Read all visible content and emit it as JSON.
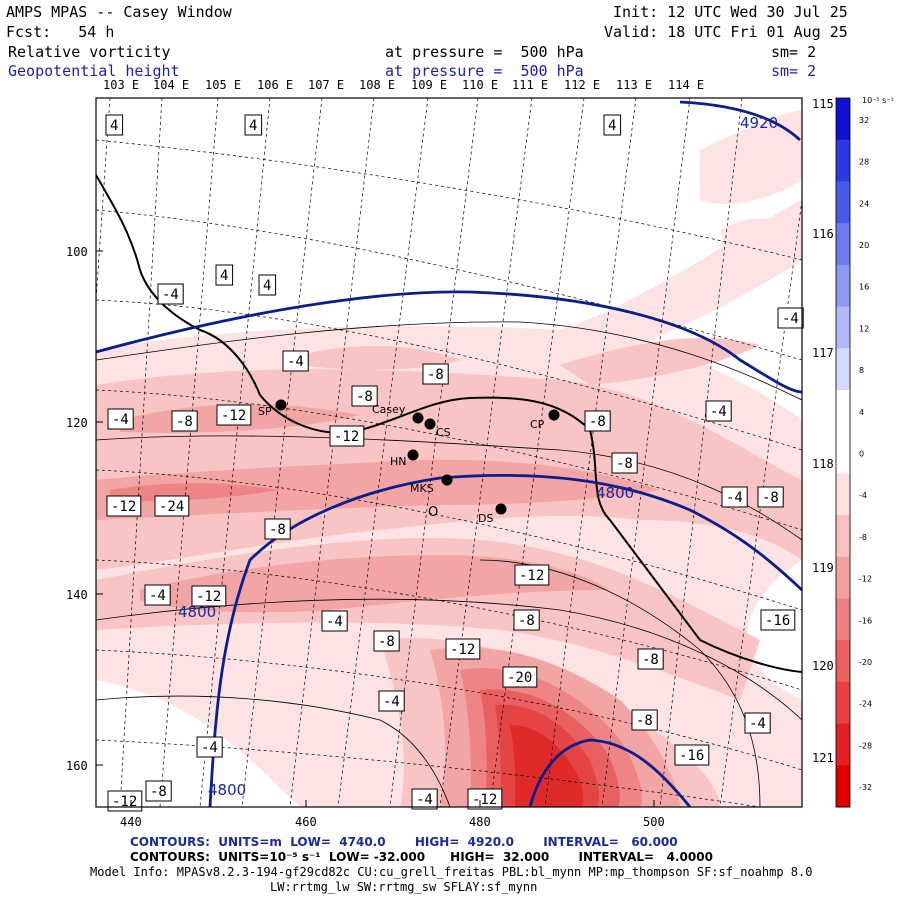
{
  "header": {
    "title": "AMPS MPAS -- Casey Window",
    "fcst": "Fcst:   54 h",
    "init": "Init: 12 UTC Wed 30 Jul 25",
    "valid": "Valid: 18 UTC Fri 01 Aug 25",
    "field1_name": "Relative vorticity",
    "field1_level": "at pressure =  500 hPa",
    "field1_sm": "sm= 2",
    "field2_name": "Geopotential height",
    "field2_level": "at pressure =  500 hPa",
    "field2_sm": "sm= 2"
  },
  "map": {
    "lon_labels": [
      "103 E",
      "104 E",
      "105 E",
      "106 E",
      "107 E",
      "108 E",
      "109 E",
      "110 E",
      "111 E",
      "112 E",
      "113 E",
      "114 E"
    ],
    "lat_labels_right": [
      "115 E",
      "116 E",
      "117 E",
      "118 E",
      "119 E",
      "120 E",
      "121 E"
    ],
    "x_ticks": [
      "440",
      "460",
      "480",
      "500"
    ],
    "y_ticks": [
      "100",
      "120",
      "140",
      "160"
    ],
    "stations": [
      {
        "id": "SP",
        "label": "SP"
      },
      {
        "id": "Casey",
        "label": "Casey"
      },
      {
        "id": "CS",
        "label": "CS"
      },
      {
        "id": "CP",
        "label": "CP"
      },
      {
        "id": "HN",
        "label": "HN"
      },
      {
        "id": "MKS",
        "label": "MKS"
      },
      {
        "id": "DS",
        "label": "DS"
      },
      {
        "id": "O",
        "label": "O"
      }
    ],
    "height_labels": [
      "4920",
      "4800",
      "4800",
      "4800"
    ],
    "vort_labels": [
      "4",
      "4",
      "4",
      "4",
      "4",
      "-4",
      "-4",
      "-4",
      "-4",
      "-4",
      "-4",
      "-4",
      "-4",
      "-4",
      "-4",
      "-4",
      "-4",
      "-8",
      "-8",
      "-8",
      "-8",
      "-8",
      "-8",
      "-8",
      "-8",
      "-8",
      "-8",
      "-8",
      "-8",
      "-12",
      "-12",
      "-12",
      "-12",
      "-12",
      "-12",
      "-12",
      "-12",
      "-16",
      "-16",
      "-24",
      "-20"
    ]
  },
  "colorbar": {
    "unit": "10⁻⁵ s⁻¹",
    "labels": [
      "32",
      "28",
      "24",
      "20",
      "16",
      "12",
      "8",
      "4",
      "0",
      "-4",
      "-8",
      "-12",
      "-16",
      "-20",
      "-24",
      "-28",
      "-32"
    ],
    "colors": [
      "#1010d0",
      "#2a3ae0",
      "#4a5ae8",
      "#6c7aee",
      "#8e98f2",
      "#b0b8f6",
      "#d4d8fa",
      "#ffffff",
      "#ffffff",
      "#fde0e0",
      "#f8c0c0",
      "#f4a0a0",
      "#f08080",
      "#ec6060",
      "#e84040",
      "#e42020",
      "#e00000"
    ]
  },
  "footer": {
    "line1": "CONTOURS:  UNITS=m  LOW=  4740.0       HIGH=  4920.0       INTERVAL=   60.000",
    "line2": "CONTOURS:  UNITS=10⁻⁵ s⁻¹  LOW= -32.000      HIGH=  32.000       INTERVAL=   4.0000",
    "line3": "Model Info: MPASv8.2.3-194-gf29cd82c CU:cu_grell_freitas PBL:bl_mynn MP:mp_thompson SF:sf_noahmp 8.0",
    "line4": "LW:rrtmg_lw SW:rrtmg_sw SFLAY:sf_mynn"
  }
}
